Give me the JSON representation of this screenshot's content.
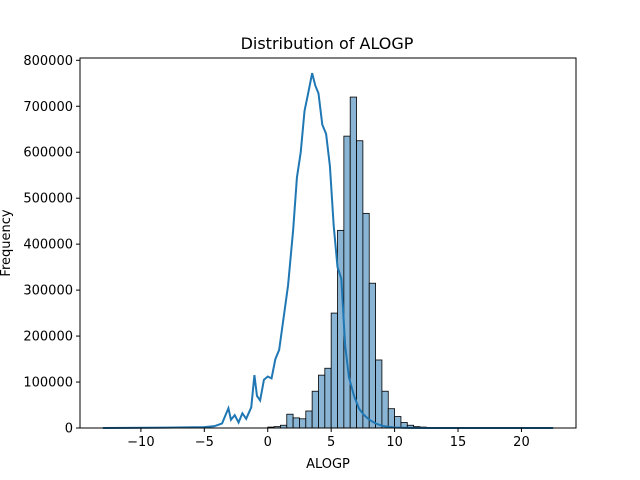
{
  "chart_data": {
    "type": "bar",
    "subtype": "histogram-with-kde",
    "title": "Distribution of ALOGP",
    "xlabel": "ALOGP",
    "ylabel": "Frequency",
    "xlim": [
      -14.8,
      24.3
    ],
    "ylim": [
      0,
      805000
    ],
    "x_ticks": [
      -10,
      -5,
      0,
      5,
      10,
      15,
      20
    ],
    "x_tick_labels": [
      "−10",
      "−5",
      "0",
      "5",
      "10",
      "15",
      "20"
    ],
    "y_ticks": [
      0,
      100000,
      200000,
      300000,
      400000,
      500000,
      600000,
      700000,
      800000
    ],
    "y_tick_labels": [
      "0",
      "100000",
      "200000",
      "300000",
      "400000",
      "500000",
      "600000",
      "700000",
      "800000"
    ],
    "grid": false,
    "legend": false,
    "bar_fill": "#8ab4d3",
    "bar_edge": "#000000",
    "kde_color": "#1f77b4",
    "bins": {
      "edges_start": -13.0,
      "bin_width": 0.5,
      "counts": [
        0,
        0,
        0,
        0,
        0,
        0,
        0,
        0,
        0,
        0,
        0,
        0,
        0,
        0,
        0,
        0,
        0,
        0,
        0,
        0,
        0,
        0,
        0,
        0,
        0,
        0,
        2000,
        3000,
        6000,
        30000,
        22000,
        20000,
        37000,
        80000,
        115000,
        130000,
        250000,
        430000,
        635000,
        720000,
        625000,
        467000,
        315000,
        148000,
        80000,
        42000,
        25000,
        12000,
        6000,
        3000,
        2000,
        1000,
        0,
        0,
        0,
        0,
        0,
        0,
        0,
        0,
        0,
        0,
        0,
        0,
        0,
        0,
        0,
        0,
        0,
        0,
        0,
        0
      ]
    },
    "kde": {
      "x": [
        -13,
        -8,
        -5,
        -4.2,
        -3.6,
        -3.3,
        -3.1,
        -2.9,
        -2.6,
        -2.3,
        -2.0,
        -1.7,
        -1.3,
        -1.05,
        -0.85,
        -0.6,
        -0.3,
        0,
        0.3,
        0.6,
        0.9,
        1.3,
        1.6,
        2.0,
        2.3,
        2.6,
        2.9,
        3.2,
        3.5,
        3.75,
        4.0,
        4.3,
        4.6,
        4.9,
        5.2,
        5.5,
        5.8,
        6.1,
        6.4,
        6.8,
        7.2,
        7.6,
        8.0,
        8.5,
        9.0,
        9.5,
        10,
        11,
        13,
        16,
        22.5
      ],
      "y": [
        0,
        800,
        2000,
        4000,
        10000,
        30000,
        43000,
        18000,
        28000,
        12000,
        32000,
        20000,
        45000,
        115000,
        70000,
        60000,
        105000,
        112000,
        108000,
        150000,
        170000,
        250000,
        310000,
        430000,
        545000,
        600000,
        690000,
        730000,
        772000,
        745000,
        728000,
        660000,
        640000,
        570000,
        440000,
        350000,
        325000,
        180000,
        110000,
        70000,
        42000,
        28000,
        18000,
        10000,
        5000,
        2500,
        1000,
        300,
        0,
        0,
        0
      ]
    }
  }
}
